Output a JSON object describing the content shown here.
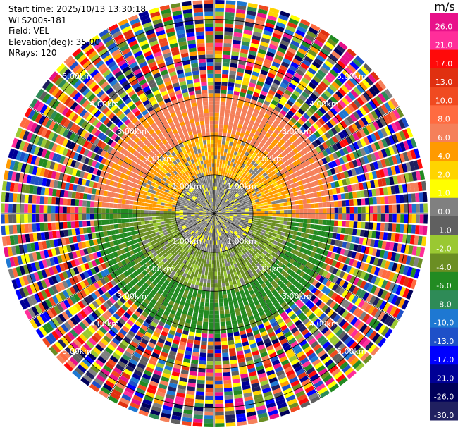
{
  "header": {
    "start_time": "Start time: 2025/10/13 13:30:18",
    "instrument": "WLS200s-181",
    "field": "Field: VEL",
    "elevation": "Elevation(deg): 35.00",
    "nrays": "NRays: 120"
  },
  "colorbar": {
    "unit": "m/s",
    "ticks": [
      "26.0",
      "21.0",
      "17.0",
      "13.0",
      "10.0",
      "8.0",
      "6.0",
      "4.0",
      "2.0",
      "1.0",
      "0.0",
      "-1.0",
      "-2.0",
      "-4.0",
      "-6.0",
      "-8.0",
      "-10.0",
      "-13.0",
      "-17.0",
      "-21.0",
      "-26.0",
      "-30.0"
    ],
    "colors": [
      "#e8128a",
      "#ff2e9a",
      "#ff0a0a",
      "#e03010",
      "#f04a20",
      "#ff6b40",
      "#f5805a",
      "#ff9a00",
      "#ffd400",
      "#ffff00",
      "#808080",
      "#606060",
      "#9ac832",
      "#6b8e23",
      "#228b22",
      "#2e8b57",
      "#1e78d2",
      "#1e50c8",
      "#0000ff",
      "#000096",
      "#00005a",
      "#202060"
    ]
  },
  "chart_data": {
    "type": "ppi",
    "field": "VEL",
    "units": "m/s",
    "nrays": 120,
    "elevation_deg": 35.0,
    "range_max_km": 5.5,
    "range_rings_km": [
      1,
      2,
      3,
      4,
      5
    ],
    "range_ring_labels": [
      "1.00km",
      "2.00km",
      "3.00km",
      "4.00km",
      "5.00km"
    ],
    "spoke_angles_deg": [
      0,
      30,
      60,
      90,
      120,
      150,
      180,
      210,
      240,
      270,
      300,
      330
    ],
    "velocity_field": {
      "inner_core_km": [
        0,
        1
      ],
      "upper_half_0_1km_ms": 0.0,
      "upper_half_1_2km_ms": 4.0,
      "upper_half_2_3km_ms": 6.0,
      "lower_half_0_1km_ms": -2.0,
      "lower_half_1_2km_ms": -4.0,
      "lower_half_2_3km_ms": -6.0,
      "beyond_3_5km": "noise (all colors)"
    },
    "colorbar_range": [
      -30.0,
      26.0
    ],
    "legend_position": "right"
  }
}
